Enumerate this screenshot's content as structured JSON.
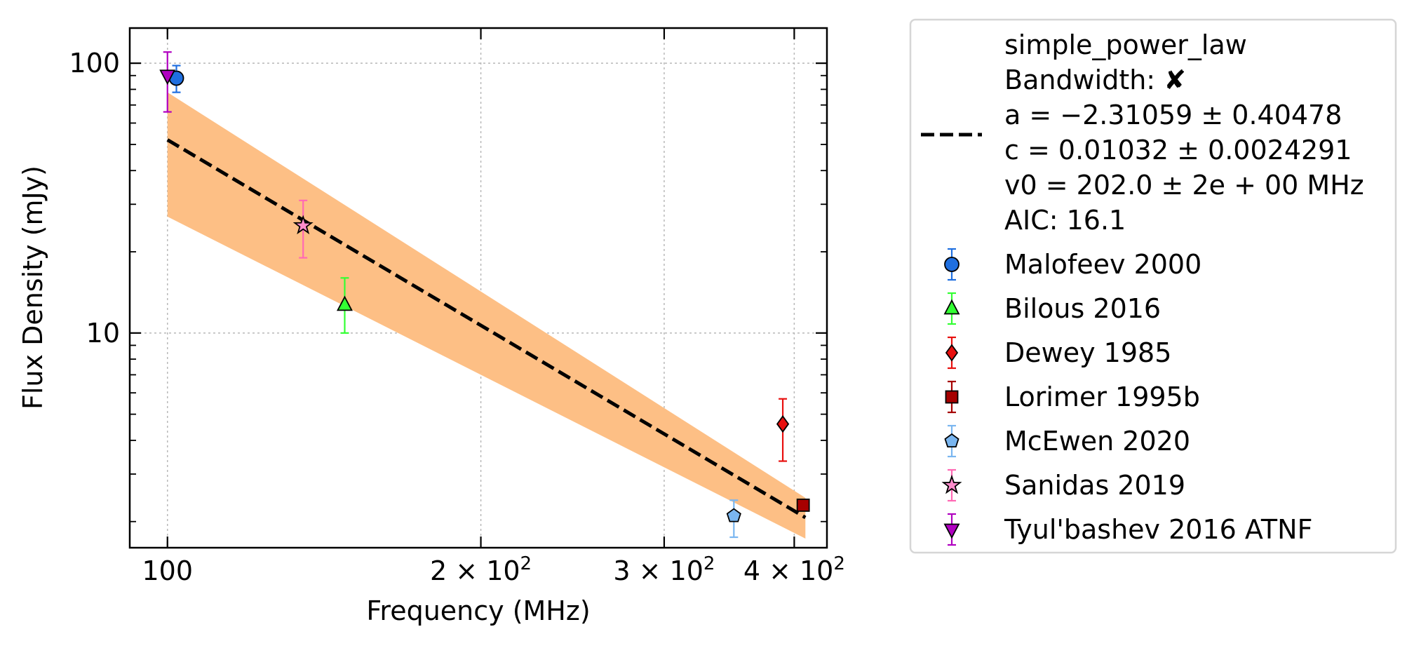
{
  "chart_data": {
    "type": "scatter",
    "x_scale": "log",
    "y_scale": "log",
    "xlabel": "Frequency (MHz)",
    "ylabel": "Flux Density (mJy)",
    "xlim": [
      92,
      430
    ],
    "ylim": [
      1.6,
      135
    ],
    "x_ticks": [
      {
        "value": 100,
        "label": "100",
        "sup": ""
      },
      {
        "value": 200,
        "label": "2 × 10",
        "sup": "2"
      },
      {
        "value": 300,
        "label": "3 × 10",
        "sup": "2"
      },
      {
        "value": 400,
        "label": "4 × 10",
        "sup": "2"
      }
    ],
    "y_ticks": [
      {
        "value": 10,
        "label": "10"
      },
      {
        "value": 100,
        "label": "100"
      }
    ],
    "grid": true,
    "legend_position": "outside-right",
    "fit": {
      "model": "simple_power_law",
      "bandwidth_label": "Bandwidth: ",
      "bandwidth_mark": "✘",
      "param_a": "a = −2.31059 ± 0.40478",
      "param_c": "c = 0.01032 ± 0.0024291",
      "param_v0": "v0 = 202.0 ± 2e + 00 MHz",
      "aic": "AIC: 16.1",
      "line_color": "#000000",
      "band_color": "#fdbf85",
      "line_start": {
        "x": 100,
        "y": 52
      },
      "line_end": {
        "x": 410,
        "y": 2.07
      },
      "band_upper": [
        {
          "x": 100,
          "y": 78
        },
        {
          "x": 410,
          "y": 2.45
        }
      ],
      "band_lower": [
        {
          "x": 100,
          "y": 27
        },
        {
          "x": 410,
          "y": 1.73
        }
      ]
    },
    "series": [
      {
        "name": "Malofeev 2000",
        "marker": "circle",
        "color": "#1f6fe0",
        "err_color": "#1f6fe0",
        "points": [
          {
            "x": 102,
            "y": 88,
            "yerr_low": 78,
            "yerr_high": 98
          }
        ]
      },
      {
        "name": "Bilous 2016",
        "marker": "triangle-up",
        "color": "#33ff33",
        "err_color": "#33ff33",
        "points": [
          {
            "x": 148,
            "y": 12.7,
            "yerr_low": 10.0,
            "yerr_high": 16.0
          }
        ]
      },
      {
        "name": "Dewey 1985",
        "marker": "diamond",
        "color": "#e8100f",
        "err_color": "#e8100f",
        "points": [
          {
            "x": 390,
            "y": 4.6,
            "yerr_low": 3.35,
            "yerr_high": 5.7
          }
        ]
      },
      {
        "name": "Lorimer 1995b",
        "marker": "square",
        "color": "#a60000",
        "err_color": "#a60000",
        "points": [
          {
            "x": 408,
            "y": 2.3,
            "yerr_low": 2.2,
            "yerr_high": 2.4
          }
        ]
      },
      {
        "name": "McEwen 2020",
        "marker": "pentagon",
        "color": "#7ab6f0",
        "err_color": "#7ab6f0",
        "points": [
          {
            "x": 350,
            "y": 2.1,
            "yerr_low": 1.75,
            "yerr_high": 2.4
          }
        ]
      },
      {
        "name": "Sanidas 2019",
        "marker": "star",
        "color": "#ff8ccc",
        "err_color": "#ff69b4",
        "points": [
          {
            "x": 135,
            "y": 25,
            "yerr_low": 19,
            "yerr_high": 31
          }
        ]
      },
      {
        "name": "Tyul'bashev 2016 ATNF",
        "marker": "triangle-down",
        "color": "#b000c0",
        "err_color": "#b000c0",
        "points": [
          {
            "x": 100,
            "y": 90,
            "yerr_low": 66,
            "yerr_high": 110
          }
        ]
      }
    ]
  }
}
